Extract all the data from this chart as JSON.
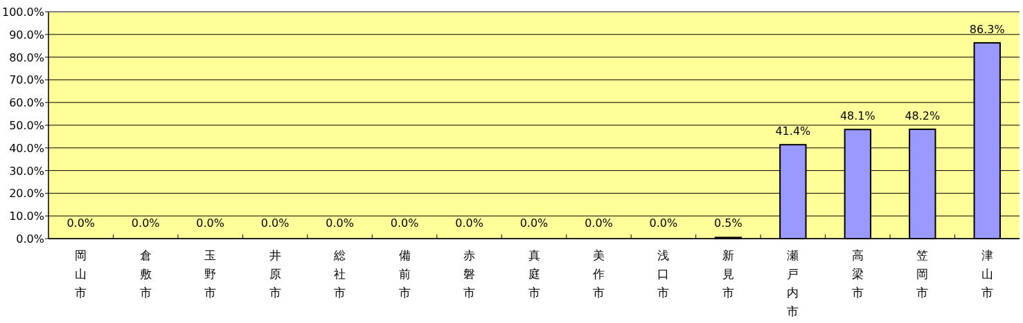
{
  "chart_data": {
    "type": "bar",
    "categories": [
      "岡山市",
      "倉敷市",
      "玉野市",
      "井原市",
      "総社市",
      "備前市",
      "赤磐市",
      "真庭市",
      "美作市",
      "浅口市",
      "新見市",
      "瀬戸内市",
      "高梁市",
      "笠岡市",
      "津山市"
    ],
    "series": [
      {
        "color": "#9999ff",
        "values": [
          0,
          0,
          0,
          0,
          0,
          0,
          0,
          0,
          0,
          0,
          0.5,
          41.4,
          48.1,
          48.2,
          86.3
        ],
        "value_labels": [
          "0.0%",
          "0.0%",
          "0.0%",
          "0.0%",
          "0.0%",
          "0.0%",
          "0.0%",
          "0.0%",
          "0.0%",
          "0.0%",
          "0.5%",
          "41.4%",
          "48.1%",
          "48.2%",
          "86.3%"
        ]
      }
    ],
    "ylim": [
      0,
      100
    ],
    "yticks": [
      {
        "value": 0,
        "label": "0.0%"
      },
      {
        "value": 10,
        "label": "10.0%"
      },
      {
        "value": 20,
        "label": "20.0%"
      },
      {
        "value": 30,
        "label": "30.0%"
      },
      {
        "value": 40,
        "label": "40.0%"
      },
      {
        "value": 50,
        "label": "50.0%"
      },
      {
        "value": 60,
        "label": "60.0%"
      },
      {
        "value": 70,
        "label": "70.0%"
      },
      {
        "value": 80,
        "label": "80.0%"
      },
      {
        "value": 90,
        "label": "90.0%"
      },
      {
        "value": 100,
        "label": "100.0%"
      }
    ],
    "grid": "y"
  }
}
